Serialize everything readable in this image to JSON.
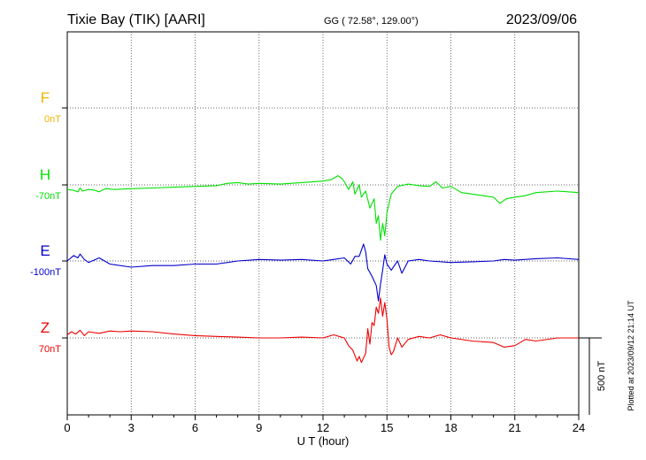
{
  "header": {
    "station": "Tixie Bay (TIK)  [AARI]",
    "coords": "GG ( 72.58°, 129.00°)",
    "date": "2023/09/06"
  },
  "footer": {
    "plotted": "Plotted at 2023/09/12 21:14 UT"
  },
  "chart_data": {
    "type": "line",
    "xlabel": "U T (hour)",
    "xlim": [
      0,
      24
    ],
    "x_ticks": [
      0,
      3,
      6,
      9,
      12,
      15,
      18,
      21,
      24
    ],
    "grid": true,
    "scale_bar": {
      "label": "500 nT",
      "value_nT": 500
    },
    "components": [
      {
        "name": "F",
        "baseline": "0nT",
        "color": "#f0b400"
      },
      {
        "name": "H",
        "baseline": "-70nT",
        "color": "#00e000"
      },
      {
        "name": "E",
        "baseline": "-100nT",
        "color": "#0000cc"
      },
      {
        "name": "Z",
        "baseline": "70nT",
        "color": "#ee0000"
      }
    ],
    "series": [
      {
        "name": "H",
        "color": "#00e000",
        "points": [
          [
            0.0,
            -30
          ],
          [
            0.3,
            -35
          ],
          [
            0.5,
            -45
          ],
          [
            0.6,
            -20
          ],
          [
            0.7,
            -40
          ],
          [
            1.0,
            -30
          ],
          [
            1.3,
            -35
          ],
          [
            1.5,
            -45
          ],
          [
            1.8,
            -25
          ],
          [
            2.2,
            -30
          ],
          [
            3.0,
            -25
          ],
          [
            4.0,
            -20
          ],
          [
            5.0,
            -15
          ],
          [
            6.0,
            -10
          ],
          [
            7.0,
            -5
          ],
          [
            7.5,
            10
          ],
          [
            8.0,
            15
          ],
          [
            8.5,
            5
          ],
          [
            9.0,
            10
          ],
          [
            10.0,
            5
          ],
          [
            11.0,
            15
          ],
          [
            12.0,
            25
          ],
          [
            12.4,
            35
          ],
          [
            12.7,
            60
          ],
          [
            12.9,
            40
          ],
          [
            13.0,
            20
          ],
          [
            13.2,
            -30
          ],
          [
            13.4,
            20
          ],
          [
            13.5,
            -60
          ],
          [
            13.7,
            0
          ],
          [
            13.8,
            -80
          ],
          [
            14.0,
            -40
          ],
          [
            14.2,
            -150
          ],
          [
            14.4,
            -90
          ],
          [
            14.5,
            -250
          ],
          [
            14.6,
            -200
          ],
          [
            14.7,
            -360
          ],
          [
            14.8,
            -250
          ],
          [
            14.9,
            -330
          ],
          [
            15.0,
            -180
          ],
          [
            15.2,
            -60
          ],
          [
            15.5,
            -10
          ],
          [
            16.0,
            5
          ],
          [
            16.5,
            -5
          ],
          [
            17.0,
            -10
          ],
          [
            17.3,
            20
          ],
          [
            17.6,
            -20
          ],
          [
            18.0,
            -10
          ],
          [
            18.5,
            -50
          ],
          [
            19.0,
            -60
          ],
          [
            19.5,
            -70
          ],
          [
            20.0,
            -80
          ],
          [
            20.3,
            -120
          ],
          [
            20.6,
            -90
          ],
          [
            21.0,
            -80
          ],
          [
            21.5,
            -70
          ],
          [
            22.0,
            -50
          ],
          [
            22.5,
            -45
          ],
          [
            23.0,
            -40
          ],
          [
            24.0,
            -50
          ]
        ]
      },
      {
        "name": "E",
        "color": "#0000cc",
        "points": [
          [
            0.0,
            0
          ],
          [
            0.3,
            35
          ],
          [
            0.5,
            20
          ],
          [
            0.6,
            45
          ],
          [
            0.8,
            10
          ],
          [
            1.0,
            -10
          ],
          [
            1.5,
            20
          ],
          [
            2.0,
            -20
          ],
          [
            3.0,
            -40
          ],
          [
            4.0,
            -30
          ],
          [
            5.0,
            -30
          ],
          [
            6.0,
            -20
          ],
          [
            7.0,
            -20
          ],
          [
            8.0,
            0
          ],
          [
            9.0,
            10
          ],
          [
            10.0,
            5
          ],
          [
            11.0,
            10
          ],
          [
            12.0,
            0
          ],
          [
            12.5,
            10
          ],
          [
            13.0,
            20
          ],
          [
            13.3,
            -20
          ],
          [
            13.5,
            30
          ],
          [
            13.7,
            30
          ],
          [
            13.9,
            110
          ],
          [
            14.0,
            60
          ],
          [
            14.1,
            -50
          ],
          [
            14.3,
            -100
          ],
          [
            14.5,
            -160
          ],
          [
            14.6,
            -260
          ],
          [
            14.7,
            -150
          ],
          [
            14.8,
            -60
          ],
          [
            14.9,
            40
          ],
          [
            15.0,
            -20
          ],
          [
            15.2,
            -60
          ],
          [
            15.5,
            0
          ],
          [
            15.7,
            -80
          ],
          [
            16.0,
            0
          ],
          [
            16.5,
            10
          ],
          [
            17.0,
            0
          ],
          [
            18.0,
            -10
          ],
          [
            19.0,
            -5
          ],
          [
            20.0,
            0
          ],
          [
            20.5,
            10
          ],
          [
            21.0,
            5
          ],
          [
            22.0,
            15
          ],
          [
            23.0,
            20
          ],
          [
            24.0,
            10
          ]
        ]
      },
      {
        "name": "Z",
        "color": "#ee0000",
        "points": [
          [
            0.0,
            20
          ],
          [
            0.2,
            40
          ],
          [
            0.4,
            25
          ],
          [
            0.6,
            50
          ],
          [
            0.8,
            15
          ],
          [
            1.0,
            40
          ],
          [
            1.5,
            30
          ],
          [
            2.0,
            45
          ],
          [
            2.5,
            40
          ],
          [
            3.0,
            45
          ],
          [
            4.0,
            40
          ],
          [
            5.0,
            25
          ],
          [
            6.0,
            15
          ],
          [
            7.0,
            10
          ],
          [
            8.0,
            5
          ],
          [
            9.0,
            0
          ],
          [
            10.0,
            0
          ],
          [
            11.0,
            5
          ],
          [
            12.0,
            0
          ],
          [
            12.5,
            20
          ],
          [
            13.0,
            0
          ],
          [
            13.2,
            -50
          ],
          [
            13.4,
            -80
          ],
          [
            13.6,
            -150
          ],
          [
            13.7,
            -120
          ],
          [
            13.8,
            -160
          ],
          [
            14.0,
            -100
          ],
          [
            14.1,
            60
          ],
          [
            14.2,
            -40
          ],
          [
            14.3,
            100
          ],
          [
            14.4,
            80
          ],
          [
            14.5,
            200
          ],
          [
            14.6,
            160
          ],
          [
            14.7,
            260
          ],
          [
            14.8,
            140
          ],
          [
            14.9,
            230
          ],
          [
            15.0,
            120
          ],
          [
            15.1,
            -60
          ],
          [
            15.2,
            -110
          ],
          [
            15.3,
            -90
          ],
          [
            15.5,
            0
          ],
          [
            15.7,
            -60
          ],
          [
            16.0,
            -10
          ],
          [
            16.5,
            10
          ],
          [
            17.0,
            0
          ],
          [
            17.5,
            20
          ],
          [
            18.0,
            0
          ],
          [
            19.0,
            -20
          ],
          [
            20.0,
            -30
          ],
          [
            20.5,
            -60
          ],
          [
            21.0,
            -50
          ],
          [
            21.5,
            -10
          ],
          [
            22.0,
            -20
          ],
          [
            23.0,
            0
          ],
          [
            24.0,
            0
          ]
        ]
      }
    ]
  }
}
